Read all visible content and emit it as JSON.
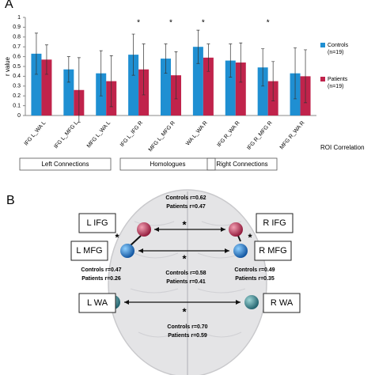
{
  "chart_data": {
    "type": "bar",
    "panel_label": "A",
    "ylabel": "r value",
    "xlabel": "ROI Correlation",
    "categories": [
      "IFG L_WA L",
      "IFG L_MFG L",
      "MFG L_WA L",
      "IFG L_IFG R",
      "MFG L_MFG R",
      "WA L_WA R",
      "IFG R_WA R",
      "IFG R_MFG R",
      "MFG R_WA R"
    ],
    "series": [
      {
        "name": "Controls",
        "note": "(n=19)",
        "color": "#1f8fd2",
        "values": [
          0.63,
          0.47,
          0.43,
          0.62,
          0.58,
          0.7,
          0.56,
          0.49,
          0.43
        ],
        "errors": [
          0.21,
          0.13,
          0.23,
          0.21,
          0.15,
          0.17,
          0.17,
          0.19,
          0.26
        ]
      },
      {
        "name": "Patients",
        "note": "(n=19)",
        "color": "#c0234b",
        "values": [
          0.57,
          0.26,
          0.35,
          0.47,
          0.41,
          0.59,
          0.54,
          0.35,
          0.4
        ],
        "errors": [
          0.15,
          0.33,
          0.26,
          0.26,
          0.24,
          0.14,
          0.2,
          0.2,
          0.27
        ]
      }
    ],
    "significant": [
      false,
      false,
      false,
      true,
      true,
      true,
      false,
      true,
      false
    ],
    "significance_marker": "*",
    "groups": [
      "Left Connections",
      "Homologues",
      "Right Connections"
    ],
    "ylim": [
      0,
      1
    ],
    "yticks": [
      0,
      0.1,
      0.2,
      0.3,
      0.4,
      0.5,
      0.6,
      0.7,
      0.8,
      0.9,
      1
    ],
    "grid": false,
    "legend": "right"
  },
  "diagram": {
    "panel_label": "B",
    "nodes": [
      "L IFG",
      "R IFG",
      "L MFG",
      "R MFG",
      "L WA",
      "R WA"
    ],
    "edges": [
      {
        "marker": "*",
        "controls": "Controls r=0.62",
        "patients": "Patients r=0.47"
      },
      {
        "marker": "*",
        "controls": "Controls r=0.58",
        "patients": "Patients r=0.41"
      },
      {
        "marker": "*",
        "controls": "Controls r=0.70",
        "patients": "Patients r=0.59"
      },
      {
        "marker": "*",
        "controls": "Controls r=0.47",
        "patients": "Patients r=0.26"
      },
      {
        "marker": "*",
        "controls": "Controls r=0.49",
        "patients": "Patients r=0.35"
      }
    ]
  }
}
